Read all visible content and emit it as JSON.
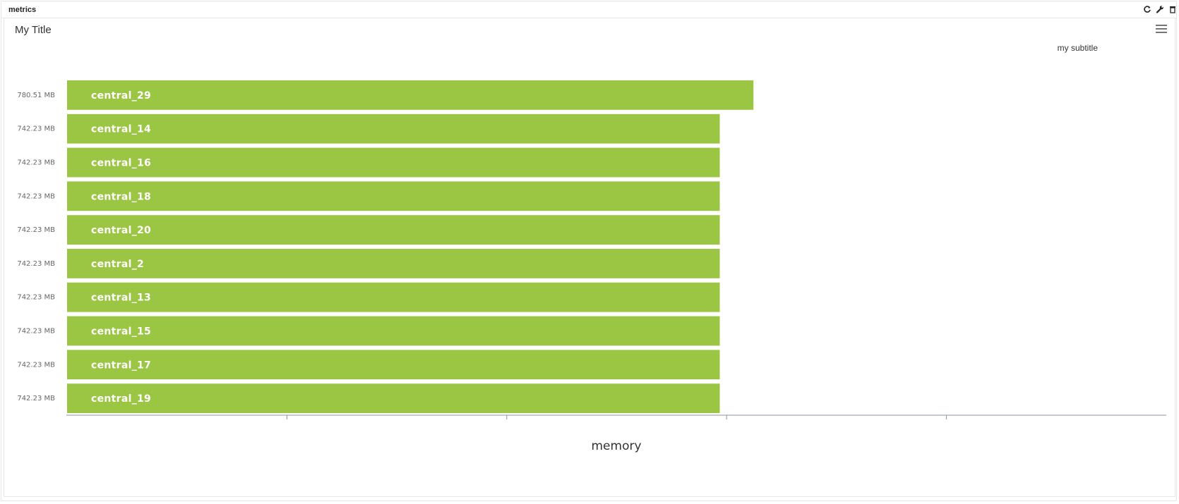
{
  "panel": {
    "title": "metrics",
    "icons": [
      "refresh-icon",
      "wrench-icon",
      "trash-icon"
    ]
  },
  "colors": {
    "bar": "#9bc644",
    "axis": "#8a94a0"
  },
  "chart_data": {
    "type": "bar",
    "orientation": "horizontal",
    "title": "My Title",
    "subtitle": "my subtitle",
    "xlabel": "memory",
    "ylabel": "",
    "unit": "MB",
    "xlim": [
      0,
      1250
    ],
    "x_ticks": [
      250,
      500,
      750,
      1000
    ],
    "grid": false,
    "legend": "none",
    "categories": [
      "central_29",
      "central_14",
      "central_16",
      "central_18",
      "central_20",
      "central_2",
      "central_13",
      "central_15",
      "central_17",
      "central_19"
    ],
    "values": [
      780.51,
      742.23,
      742.23,
      742.23,
      742.23,
      742.23,
      742.23,
      742.23,
      742.23,
      742.23
    ],
    "value_labels": [
      "780.51 MB",
      "742.23 MB",
      "742.23 MB",
      "742.23 MB",
      "742.23 MB",
      "742.23 MB",
      "742.23 MB",
      "742.23 MB",
      "742.23 MB",
      "742.23 MB"
    ]
  }
}
